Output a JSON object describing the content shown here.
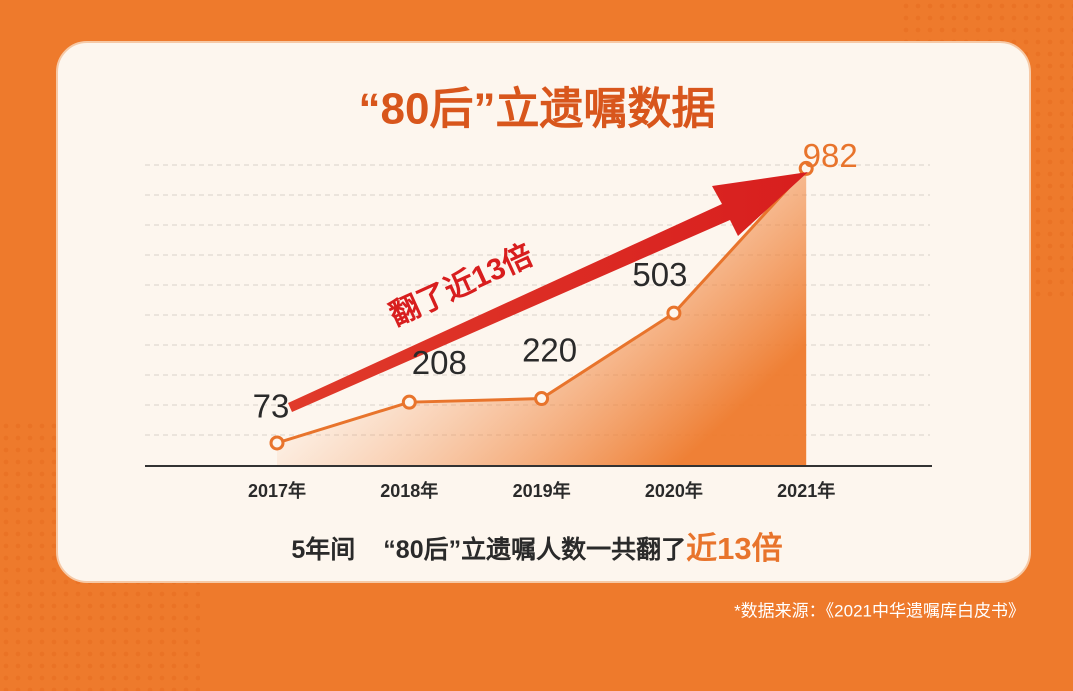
{
  "chart_data": {
    "type": "line",
    "title": "“80后”立遗嘱数据",
    "categories": [
      "2017年",
      "2018年",
      "2019年",
      "2020年",
      "2021年"
    ],
    "values": [
      73,
      208,
      220,
      503,
      982
    ],
    "color": "#e8742c",
    "ylim": [
      0,
      1000
    ],
    "annotation": "翻了近13倍",
    "caption": [
      "5年间",
      "“80后”立遗嘱人数一共翻了",
      "近13倍"
    ],
    "source": "*数据来源：《2021中华遗嘱库白皮书》"
  }
}
